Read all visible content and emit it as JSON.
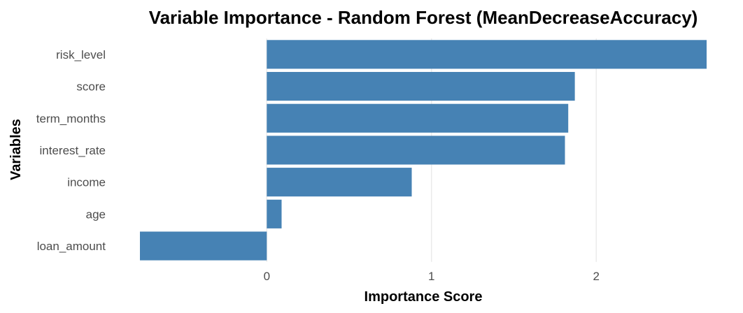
{
  "chart_data": {
    "type": "bar",
    "orientation": "horizontal",
    "title": "Variable Importance - Random Forest (MeanDecreaseAccuracy)",
    "xlabel": "Importance Score",
    "ylabel": "Variables",
    "categories": [
      "risk_level",
      "score",
      "term_months",
      "interest_rate",
      "income",
      "age",
      "loan_amount"
    ],
    "values": [
      2.67,
      1.87,
      1.83,
      1.81,
      0.88,
      0.09,
      -0.77
    ],
    "xlim": [
      -0.77,
      2.67
    ],
    "xticks": [
      0,
      1,
      2
    ],
    "bar_color": "#4682B4",
    "grid": "vertical major lines only",
    "legend": "none"
  }
}
